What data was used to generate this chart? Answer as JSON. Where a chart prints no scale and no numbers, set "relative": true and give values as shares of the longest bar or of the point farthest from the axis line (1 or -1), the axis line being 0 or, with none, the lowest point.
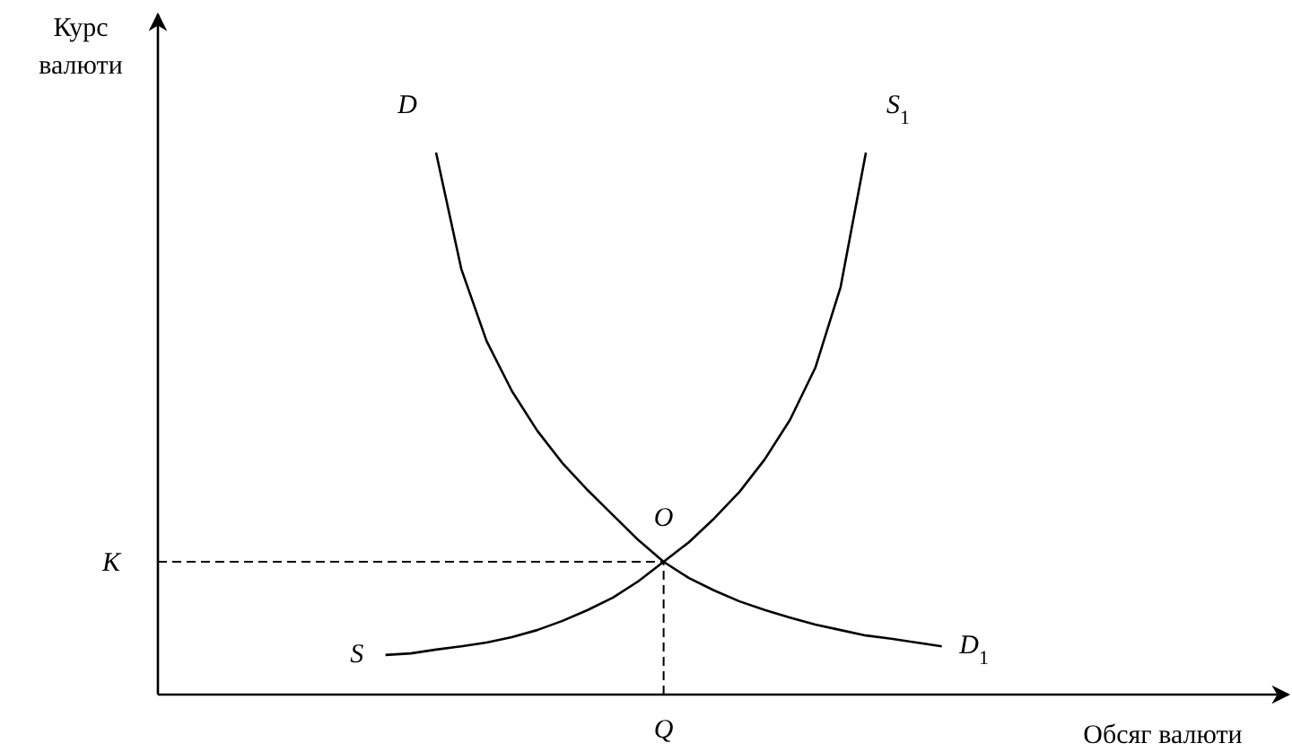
{
  "chart_data": {
    "type": "line",
    "relative": true,
    "xlabel": "Обсяг валюти",
    "ylabel": "Курс валюти",
    "marker": "none",
    "line_style": "solid",
    "categories": [
      null,
      null,
      null,
      null,
      null,
      null,
      null,
      null,
      null,
      null,
      null,
      null,
      null,
      null,
      null,
      null,
      null,
      null,
      null,
      null,
      null,
      null,
      null,
      null,
      null,
      null,
      null,
      null,
      null,
      null,
      null,
      null,
      null,
      null,
      null,
      null,
      null,
      null,
      null,
      null,
      null,
      null,
      null,
      null,
      null
    ],
    "series": [
      {
        "color": "#000000",
        "values": [
          null,
          null,
          null,
          null,
          null,
          null,
          null,
          null,
          null,
          null,
          null,
          1.0,
          0.785,
          0.652,
          0.56,
          0.487,
          0.427,
          0.377,
          0.331,
          0.285,
          0.245,
          0.215,
          0.192,
          0.172,
          0.156,
          0.142,
          0.129,
          0.119,
          0.109,
          0.103,
          0.096,
          0.089,
          null,
          null,
          null,
          null,
          null,
          null,
          null,
          null,
          null,
          null,
          null,
          null,
          null
        ]
      },
      {
        "color": "#000000",
        "values": [
          null,
          null,
          null,
          null,
          null,
          null,
          null,
          null,
          null,
          0.073,
          0.076,
          0.083,
          0.089,
          0.096,
          0.106,
          0.119,
          0.136,
          0.156,
          0.179,
          0.209,
          0.245,
          0.281,
          0.325,
          0.374,
          0.434,
          0.507,
          0.603,
          0.752,
          1.0,
          null,
          null,
          null,
          null,
          null,
          null,
          null,
          null,
          null,
          null,
          null,
          null,
          null,
          null,
          null,
          null
        ]
      }
    ],
    "ref_lines": [
      {
        "axis": "y",
        "value": 0.245,
        "label": "K",
        "color": "#000000",
        "line_style": "dashed"
      }
    ],
    "annotations": [
      "D",
      "D$_{1}$",
      "S",
      "S$_{1}$",
      "O",
      "Q"
    ]
  }
}
